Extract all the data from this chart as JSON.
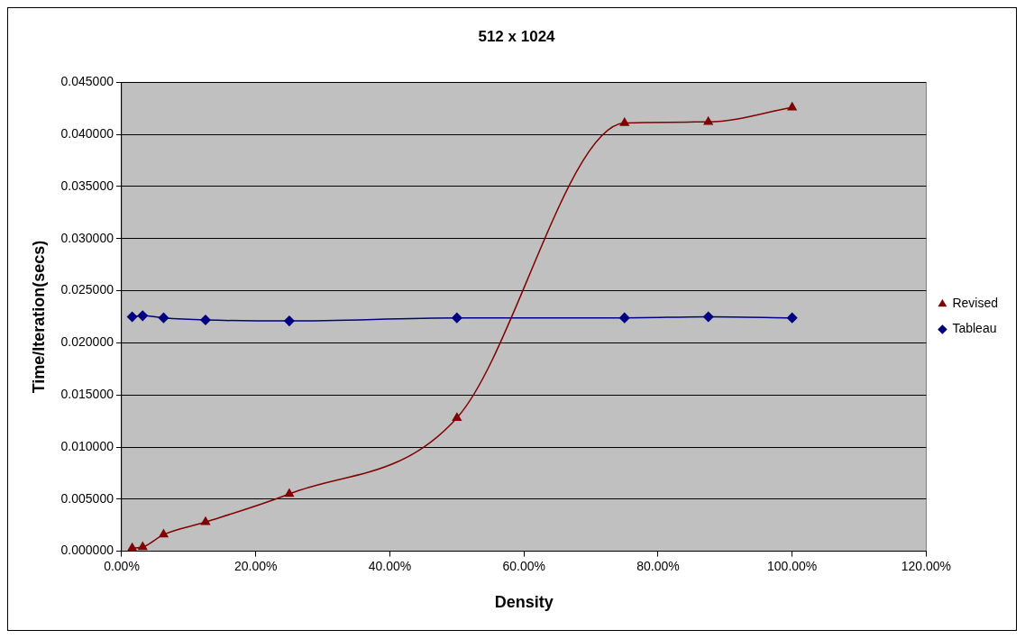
{
  "chart_data": {
    "type": "line",
    "title": "512 x 1024",
    "xlabel": "Density",
    "ylabel": "Time/Iteration(secs)",
    "x": [
      1.5625,
      3.125,
      6.25,
      12.5,
      25,
      50,
      75,
      87.5,
      100
    ],
    "series": [
      {
        "name": "Revised",
        "color": "#800000",
        "marker": "triangle",
        "values": [
          0.0003,
          0.0004,
          0.0016,
          0.0028,
          0.0055,
          0.0128,
          0.0411,
          0.0412,
          0.0426
        ]
      },
      {
        "name": "Tableau",
        "color": "#000080",
        "marker": "diamond",
        "values": [
          0.0225,
          0.0226,
          0.0224,
          0.0222,
          0.0221,
          0.0224,
          0.0224,
          0.0225,
          0.0224
        ]
      }
    ],
    "xlim": [
      0,
      120
    ],
    "xticks": [
      {
        "value": 0,
        "label": "0.00%"
      },
      {
        "value": 20,
        "label": "20.00%"
      },
      {
        "value": 40,
        "label": "40.00%"
      },
      {
        "value": 60,
        "label": "60.00%"
      },
      {
        "value": 80,
        "label": "80.00%"
      },
      {
        "value": 100,
        "label": "100.00%"
      },
      {
        "value": 120,
        "label": "120.00%"
      }
    ],
    "ylim": [
      0,
      0.045
    ],
    "yticks": [
      {
        "value": 0,
        "label": "0.000000"
      },
      {
        "value": 0.005,
        "label": "0.005000"
      },
      {
        "value": 0.01,
        "label": "0.010000"
      },
      {
        "value": 0.015,
        "label": "0.015000"
      },
      {
        "value": 0.02,
        "label": "0.020000"
      },
      {
        "value": 0.025,
        "label": "0.025000"
      },
      {
        "value": 0.03,
        "label": "0.030000"
      },
      {
        "value": 0.035,
        "label": "0.035000"
      },
      {
        "value": 0.04,
        "label": "0.040000"
      },
      {
        "value": 0.045,
        "label": "0.045000"
      }
    ],
    "grid": "y",
    "legend": "right"
  }
}
